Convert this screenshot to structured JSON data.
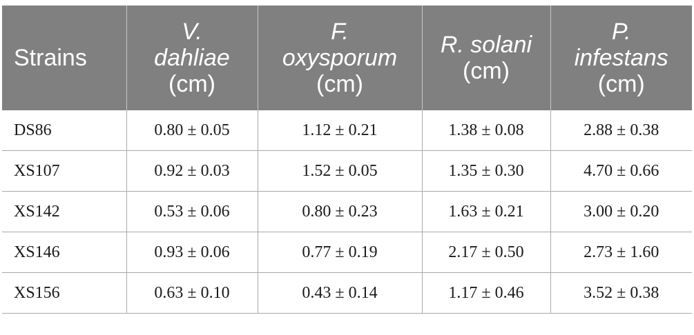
{
  "table": {
    "headers": [
      {
        "name": "Strains",
        "unit": ""
      },
      {
        "name_italic": [
          "V.",
          "dahliae"
        ],
        "unit": "(cm)"
      },
      {
        "name_italic": [
          "F.",
          "oxysporum"
        ],
        "unit": "(cm)"
      },
      {
        "name_italic": [
          "R. solani"
        ],
        "unit": "(cm)"
      },
      {
        "name_italic": [
          "P.",
          "infestans"
        ],
        "unit": "(cm)"
      }
    ],
    "rows": [
      [
        "DS86",
        "0.80 ± 0.05",
        "1.12 ± 0.21",
        "1.38 ± 0.08",
        "2.88 ± 0.38"
      ],
      [
        "XS107",
        "0.92 ± 0.03",
        "1.52 ± 0.05",
        "1.35 ± 0.30",
        "4.70 ± 0.66"
      ],
      [
        "XS142",
        "0.53 ± 0.06",
        "0.80 ± 0.23",
        "1.63 ± 0.21",
        "3.00 ± 0.20"
      ],
      [
        "XS146",
        "0.93 ± 0.06",
        "0.77 ± 0.19",
        "2.17 ± 0.50",
        "2.73 ± 1.60"
      ],
      [
        "XS156",
        "0.63 ± 0.10",
        "0.43 ± 0.14",
        "1.17 ± 0.46",
        "3.52 ± 0.38"
      ]
    ]
  },
  "colors": {
    "header_bg": "#808080",
    "header_text": "#ffffff",
    "grid": "#a8a8a8"
  }
}
